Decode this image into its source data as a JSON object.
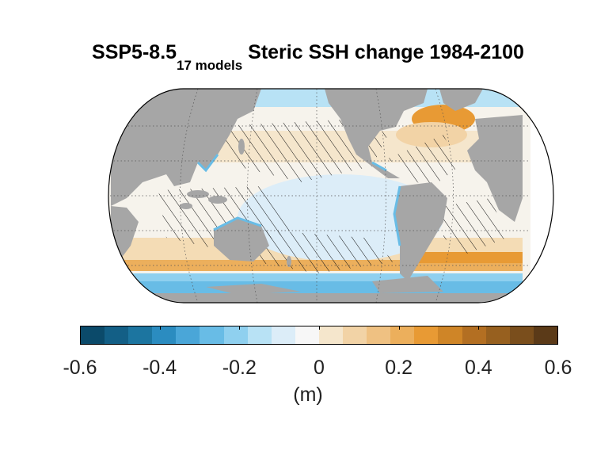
{
  "title": {
    "scenario": "SSP5-8.5",
    "subscript": "17 models",
    "rest": "Steric SSH change 1984-2100"
  },
  "colorbar": {
    "colors": [
      "#0b4a6a",
      "#135f86",
      "#1c75a0",
      "#2b8cc0",
      "#4aa6d8",
      "#68bce6",
      "#8fd0ef",
      "#b8e2f5",
      "#dcedf8",
      "#f7f7f7",
      "#f5e6cc",
      "#f2d3a6",
      "#efc182",
      "#ecaf5c",
      "#e89a34",
      "#cf8527",
      "#b36f22",
      "#97601f",
      "#7a4e1c",
      "#5b3a18"
    ],
    "ticks": [
      "-0.6",
      "-0.4",
      "-0.2",
      "0",
      "0.2",
      "0.4",
      "0.6"
    ],
    "unit": "(m)"
  },
  "map": {
    "projection": "Equal Earth, Pacific-centred",
    "land_color": "#a6a6a6",
    "hatching": "stippled where models disagree"
  }
}
